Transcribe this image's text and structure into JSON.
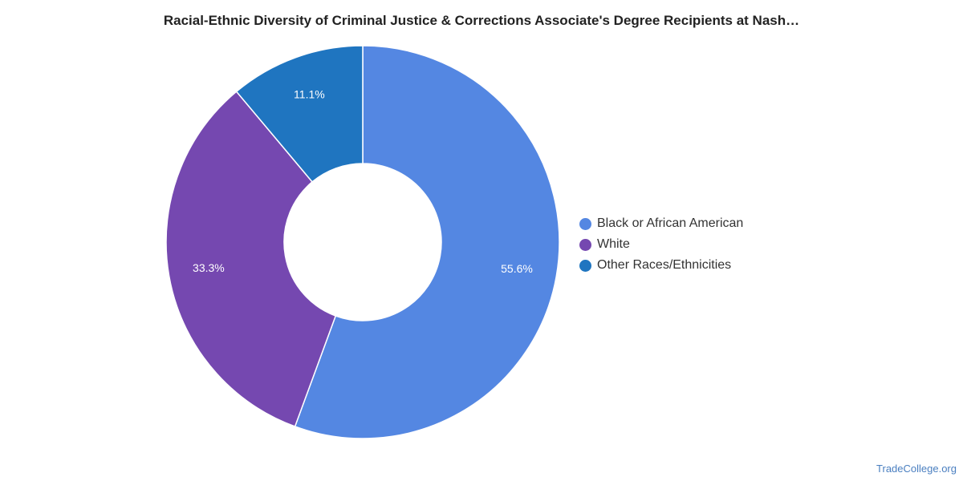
{
  "header": {
    "title": "Racial-Ethnic Diversity of Criminal Justice & Corrections Associate's Degree Recipients at Nash…"
  },
  "footer": {
    "credit": "TradeCollege.org"
  },
  "chart_data": {
    "type": "pie",
    "donut": true,
    "title": "Racial-Ethnic Diversity of Criminal Justice & Corrections Associate's Degree Recipients at Nash…",
    "legend_position": "right",
    "series": [
      {
        "name": "Black or African American",
        "value": 55.6,
        "label": "55.6%",
        "color": "#5487e2"
      },
      {
        "name": "White",
        "value": 33.3,
        "label": "33.3%",
        "color": "#7548b0"
      },
      {
        "name": "Other Races/Ethnicities",
        "value": 11.1,
        "label": "11.1%",
        "color": "#1f75c0"
      }
    ]
  }
}
